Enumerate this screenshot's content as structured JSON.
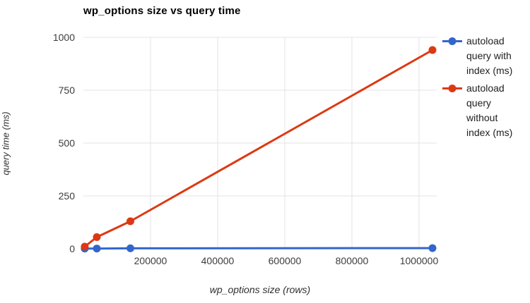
{
  "title": "wp_options size vs query time",
  "axes": {
    "x_label": "wp_options size (rows)",
    "y_label": "query time (ms)"
  },
  "legend": {
    "position": "right",
    "items": [
      {
        "label": "autoload query with index (ms)",
        "color": "#3366CC"
      },
      {
        "label": "autoload query without index (ms)",
        "color": "#DC3912"
      }
    ]
  },
  "colors": {
    "background": "#ffffff",
    "gridline": "#e3e3e3",
    "tick_label": "#3c3c3c",
    "title": "#000000",
    "series_blue": "#3366CC",
    "series_red": "#DC3912"
  },
  "chart_data": {
    "type": "line",
    "title": "wp_options size vs query time",
    "xlabel": "wp_options size (rows)",
    "ylabel": "query time (ms)",
    "x": [
      4000,
      40000,
      140000,
      1040000
    ],
    "series": [
      {
        "name": "autoload query with index (ms)",
        "color": "#3366CC",
        "values": [
          1,
          1,
          2,
          3
        ]
      },
      {
        "name": "autoload query without index (ms)",
        "color": "#DC3912",
        "values": [
          10,
          55,
          130,
          940
        ]
      }
    ],
    "xlim": [
      0,
      1052632
    ],
    "ylim": [
      0,
      1000
    ],
    "x_ticks": [
      200000,
      400000,
      600000,
      800000,
      1000000
    ],
    "y_ticks": [
      0,
      250,
      500,
      750,
      1000
    ],
    "grid": true,
    "legend_position": "right",
    "marker": "circle",
    "marker_radius": 5.5,
    "line_width": 3
  }
}
